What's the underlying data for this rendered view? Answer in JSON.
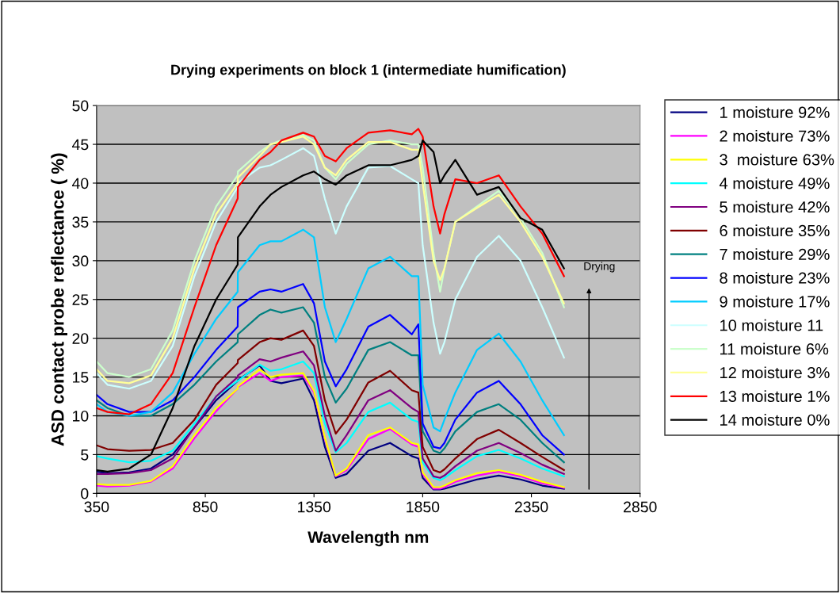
{
  "chart_data": {
    "type": "line",
    "title": "Drying experiments on block 1 (intermediate humification)",
    "xlabel": "Wavelength nm",
    "ylabel": "ASD contact probe reflectance ( %)",
    "x": [
      350,
      400,
      500,
      600,
      700,
      800,
      900,
      999,
      1000,
      1100,
      1150,
      1200,
      1300,
      1350,
      1400,
      1450,
      1500,
      1600,
      1700,
      1800,
      1830,
      1850,
      1900,
      1930,
      1950,
      2000,
      2100,
      2200,
      2300,
      2400,
      2500
    ],
    "series": [
      {
        "name": "1 moisture 92%",
        "color": "#000080",
        "values": [
          2.8,
          2.6,
          2.7,
          3.2,
          5,
          8.5,
          12,
          14.5,
          14.6,
          16.5,
          14.5,
          14.2,
          14.8,
          12,
          6,
          2.0,
          2.5,
          5.5,
          6.5,
          4.8,
          4.5,
          2,
          0.5,
          0.5,
          0.6,
          1,
          1.8,
          2.3,
          1.8,
          1.0,
          0.6
        ]
      },
      {
        "name": "2 moisture 73%",
        "color": "#ff00ff",
        "values": [
          1.0,
          0.9,
          1.0,
          1.5,
          3.2,
          7.1,
          10.6,
          13.5,
          13.7,
          15.5,
          14.5,
          15,
          15.2,
          13,
          7,
          2.2,
          3,
          7,
          8.3,
          6.3,
          6,
          2.5,
          0.6,
          0.6,
          0.8,
          1.5,
          2.3,
          2.8,
          2.2,
          1.3,
          0.7
        ]
      },
      {
        "name": "3  moisture 63%",
        "color": "#ffff00",
        "values": [
          1.2,
          1.1,
          1.1,
          1.6,
          3.5,
          7.5,
          11,
          13.5,
          13.8,
          16,
          15,
          15.3,
          15.5,
          13.2,
          7.2,
          2.3,
          3.2,
          7.5,
          8.5,
          6.5,
          6.3,
          2.7,
          0.8,
          0.8,
          1.0,
          1.7,
          2.6,
          3.0,
          2.4,
          1.5,
          0.8
        ]
      },
      {
        "name": "4 moisture 49%",
        "color": "#00ffff",
        "values": [
          4.8,
          4.5,
          4.0,
          4.2,
          5.5,
          9,
          12.5,
          14.5,
          14.5,
          16.6,
          15.8,
          16,
          17,
          15.5,
          9,
          5.3,
          6.5,
          10.5,
          11.7,
          9.5,
          9.2,
          4,
          2.0,
          1.7,
          2.0,
          3.0,
          4.8,
          5.6,
          4.5,
          3.2,
          2.2
        ]
      },
      {
        "name": "5 moisture 42%",
        "color": "#800080",
        "values": [
          2.5,
          2.5,
          2.6,
          3,
          4.5,
          8.5,
          12.5,
          15,
          15.2,
          17.3,
          17,
          17.5,
          18.3,
          16.5,
          10,
          5.5,
          7.5,
          12,
          13.3,
          11,
          10.5,
          4.5,
          2.2,
          2.0,
          2.3,
          3.5,
          5.5,
          6.5,
          5.2,
          3.7,
          2.5
        ]
      },
      {
        "name": "6 moisture 35%",
        "color": "#800000",
        "values": [
          6.2,
          5.7,
          5.5,
          5.6,
          6.5,
          9.5,
          14,
          16.8,
          17.2,
          19.5,
          20,
          19.8,
          21,
          19,
          12,
          7.7,
          9.5,
          14.3,
          15.8,
          13.3,
          13,
          6,
          3.0,
          2.7,
          3.1,
          4.5,
          7,
          8.2,
          6.5,
          4.7,
          3.0
        ]
      },
      {
        "name": "7 moisture 29%",
        "color": "#008080",
        "values": [
          12,
          11,
          10,
          10,
          11.5,
          14,
          17,
          19.5,
          20.5,
          23,
          23.7,
          23.3,
          24,
          22,
          15,
          11.7,
          13.5,
          18.5,
          19.5,
          17.8,
          17.8,
          8,
          5.5,
          5.2,
          5.8,
          8,
          10.5,
          11.5,
          9.5,
          6.5,
          4.0
        ]
      },
      {
        "name": "8 moisture 23%",
        "color": "#0000ff",
        "values": [
          12.7,
          11.5,
          10.5,
          10.5,
          12,
          15,
          18.5,
          21.5,
          24,
          26,
          26.3,
          26,
          27,
          24.5,
          17,
          13.8,
          16,
          21.5,
          23,
          20.5,
          21.8,
          9,
          6.0,
          5.8,
          6.5,
          9.5,
          13,
          14.5,
          11.5,
          7.5,
          5.0
        ]
      },
      {
        "name": "9 moisture 17%",
        "color": "#00ccff",
        "values": [
          11.5,
          10.5,
          10,
          10.5,
          13,
          18,
          22.5,
          26,
          28.5,
          32,
          32.5,
          32.5,
          34,
          33,
          24,
          19.5,
          22.5,
          29,
          30.5,
          28,
          28,
          14,
          8.5,
          8.0,
          9.5,
          13,
          18.5,
          20.6,
          17,
          12,
          7.5
        ]
      },
      {
        "name": "10 moisture 11",
        "color": "#ccffff",
        "values": [
          15.5,
          14,
          13.5,
          14.5,
          19,
          28,
          35,
          39.5,
          40,
          42,
          42.3,
          43,
          44.5,
          43.5,
          38,
          33.5,
          37,
          42,
          42.2,
          40.5,
          40,
          32,
          22,
          18,
          19.5,
          25,
          30.5,
          33.2,
          30,
          24,
          17.5
        ]
      },
      {
        "name": "11 moisture 6%",
        "color": "#ccffcc",
        "values": [
          17,
          15.5,
          15,
          16,
          21,
          30,
          37,
          41,
          41.5,
          44,
          45,
          45.5,
          46.2,
          45.5,
          42,
          40.5,
          42.5,
          45,
          45.5,
          45,
          45,
          42,
          31,
          26,
          29,
          35,
          37,
          39,
          35.5,
          31,
          24
        ]
      },
      {
        "name": "12 moisture 3%",
        "color": "#ffff99",
        "values": [
          16,
          14.5,
          14.2,
          15.2,
          20,
          29,
          36,
          40,
          40.7,
          43.5,
          45,
          45.3,
          46,
          45,
          42,
          41,
          43,
          45.3,
          45.3,
          44.3,
          44.3,
          40,
          30,
          27.5,
          29,
          35,
          36.8,
          38.5,
          35,
          30.5,
          24.5
        ]
      },
      {
        "name": "13 moisture 1%",
        "color": "#ff0000",
        "values": [
          11,
          10.5,
          10.2,
          11.5,
          15.5,
          24,
          32,
          38,
          39.5,
          43,
          44,
          45.5,
          46.5,
          46,
          43.5,
          42.8,
          44.5,
          46.5,
          46.8,
          46.3,
          47,
          46,
          37,
          33.5,
          36,
          40.5,
          40,
          41,
          37,
          33.5,
          28
        ]
      },
      {
        "name": "14 moisture 0%",
        "color": "#000000",
        "values": [
          3,
          2.8,
          3.2,
          5,
          11,
          19,
          25,
          29.5,
          33,
          37,
          38.5,
          39.5,
          41,
          41.5,
          40.5,
          39.8,
          41,
          42.3,
          42.3,
          43,
          43.5,
          45.5,
          44,
          40,
          41,
          43,
          38.5,
          39.5,
          35.5,
          34,
          29
        ]
      }
    ],
    "xlim": [
      350,
      2850
    ],
    "xticks": [
      350,
      850,
      1350,
      1850,
      2350,
      2850
    ],
    "ylim": [
      0,
      50
    ],
    "yticks": [
      0,
      5,
      10,
      15,
      20,
      25,
      30,
      35,
      40,
      45,
      50
    ],
    "grid": "y",
    "legend": "right",
    "marker": "none",
    "line_style": "solid",
    "annotations": [
      "Drying"
    ]
  }
}
